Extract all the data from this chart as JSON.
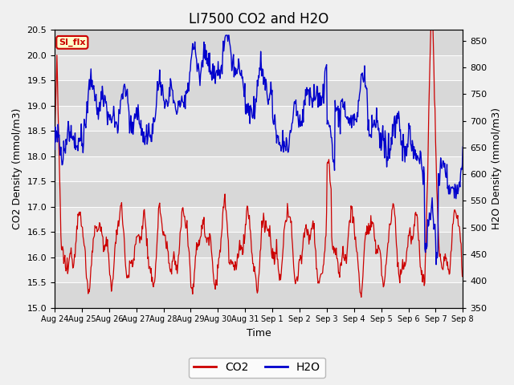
{
  "title": "LI7500 CO2 and H2O",
  "xlabel": "Time",
  "ylabel_left": "CO2 Density (mmol/m3)",
  "ylabel_right": "H2O Density (mmol/m3)",
  "ylim_left": [
    15.0,
    20.5
  ],
  "ylim_right": [
    350,
    870
  ],
  "yticks_left": [
    15.0,
    15.5,
    16.0,
    16.5,
    17.0,
    17.5,
    18.0,
    18.5,
    19.0,
    19.5,
    20.0,
    20.5
  ],
  "yticks_right": [
    350,
    400,
    450,
    500,
    550,
    600,
    650,
    700,
    750,
    800,
    850
  ],
  "xtick_labels": [
    "Aug 24",
    "Aug 25",
    "Aug 26",
    "Aug 27",
    "Aug 28",
    "Aug 29",
    "Aug 30",
    "Aug 31",
    "Sep 1",
    "Sep 2",
    "Sep 3",
    "Sep 4",
    "Sep 5",
    "Sep 6",
    "Sep 7",
    "Sep 8"
  ],
  "co2_color": "#CC0000",
  "h2o_color": "#0000CC",
  "bg_light": "#DCDCDC",
  "bg_dark": "#C8C8C8",
  "legend_co2": "CO2",
  "legend_h2o": "H2O",
  "tab_text": "SI_flx",
  "tab_bg": "#FFFFCC",
  "tab_border": "#CC0000",
  "tab_text_color": "#CC0000",
  "title_fontsize": 12,
  "axis_fontsize": 9,
  "tick_fontsize": 8,
  "legend_fontsize": 10
}
